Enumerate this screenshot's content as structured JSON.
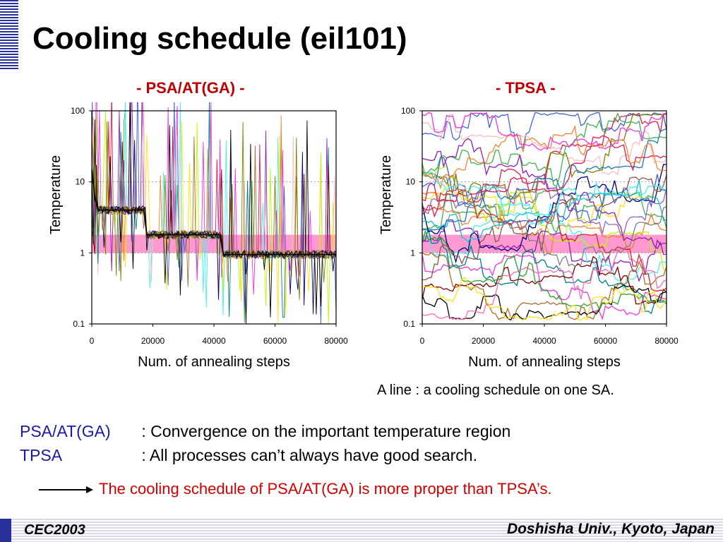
{
  "slide": {
    "title": "Cooling schedule (eil101)",
    "footnote": "A line : a cooling schedule on one SA.",
    "notes": [
      {
        "label": "PSA/AT(GA)",
        "text": ": Convergence on the important temperature region"
      },
      {
        "label": "TPSA",
        "text": ": All processes can’t always have good search."
      }
    ],
    "conclusion": "The cooling schedule of PSA/AT(GA) is more proper than TPSA’s.",
    "footer_left": "CEC2003",
    "footer_right": "Doshisha Univ., Kyoto, Japan"
  },
  "colors": {
    "title_accent": "#c00000",
    "highlight_band": "#ff88c8",
    "label_blue": "#1a1aa8",
    "conclusion_red": "#d40000",
    "deco_blue": "#2a2f9e"
  },
  "chart_data": [
    {
      "type": "line",
      "title": "- PSA/AT(GA) -",
      "xlabel": "Num. of annealing steps",
      "ylabel": "Temperature",
      "xlim": [
        0,
        80000
      ],
      "ylim": [
        0.1,
        100
      ],
      "yscale": "log",
      "x_ticks": [
        "0",
        "20000",
        "40000",
        "60000",
        "80000"
      ],
      "y_ticks": [
        "0.1",
        "1",
        "10",
        "100"
      ],
      "highlight_band": [
        1,
        1.8
      ],
      "grid": "horizontal dotted at 1 and 10",
      "legend": "none",
      "series_summary": {
        "count": 16,
        "levels": [
          {
            "x_range": [
              0,
              1000
            ],
            "y": 15
          },
          {
            "x_range": [
              1000,
              2000
            ],
            "y": 6
          },
          {
            "x_range": [
              2000,
              18000
            ],
            "y": 4
          },
          {
            "x_range": [
              18000,
              43000
            ],
            "y": 1.8
          },
          {
            "x_range": [
              43000,
              80000
            ],
            "y": 0.95
          }
        ]
      }
    },
    {
      "type": "line",
      "title": "- TPSA -",
      "xlabel": "Num. of annealing steps",
      "ylabel": "Temperature",
      "xlim": [
        0,
        80000
      ],
      "ylim": [
        0.1,
        100
      ],
      "yscale": "log",
      "x_ticks": [
        "0",
        "20000",
        "40000",
        "60000",
        "80000"
      ],
      "y_ticks": [
        "0.1",
        "1",
        "10",
        "100"
      ],
      "highlight_band": [
        1,
        1.8
      ],
      "grid": "horizontal dotted at 1 and 10",
      "legend": "none",
      "series_summary": {
        "count": 32,
        "temperature_range": [
          0.12,
          90
        ]
      }
    }
  ]
}
